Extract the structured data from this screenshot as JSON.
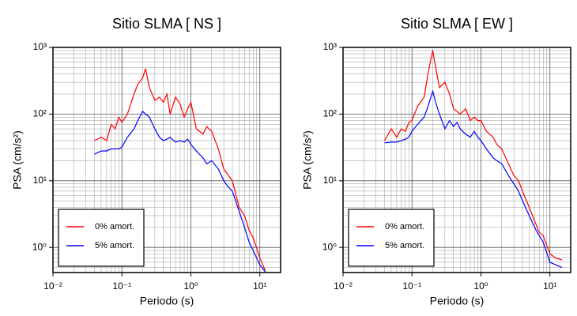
{
  "chart_data": [
    {
      "type": "line",
      "title": "Sitio SLMA [ NS ]",
      "xlabel": "Periodo (s)",
      "ylabel": "PSA (cm/s²)",
      "xscale": "log",
      "yscale": "log",
      "grid": true,
      "legend": "lower left",
      "xlim": [
        0.01,
        20
      ],
      "ylim": [
        0.42,
        1000
      ],
      "xticks": [
        {
          "value": 0.01,
          "label": "10⁻²"
        },
        {
          "value": 0.1,
          "label": "10⁻¹"
        },
        {
          "value": 1,
          "label": "10⁰"
        },
        {
          "value": 10,
          "label": "10¹"
        }
      ],
      "yticks": [
        {
          "value": 1,
          "label": "10⁰"
        },
        {
          "value": 10,
          "label": "10¹"
        },
        {
          "value": 100,
          "label": "10²"
        },
        {
          "value": 1000,
          "label": "10³"
        }
      ],
      "x": [
        0.04,
        0.05,
        0.06,
        0.07,
        0.08,
        0.09,
        0.1,
        0.12,
        0.15,
        0.17,
        0.2,
        0.22,
        0.25,
        0.3,
        0.35,
        0.4,
        0.45,
        0.5,
        0.6,
        0.7,
        0.8,
        0.9,
        1.0,
        1.2,
        1.5,
        1.7,
        2,
        2.5,
        3,
        3.5,
        4,
        5,
        6,
        7,
        8,
        10,
        12
      ],
      "series": [
        {
          "name": "0% amort.",
          "color": "#ff0000",
          "values": [
            40,
            45,
            40,
            70,
            60,
            90,
            75,
            100,
            200,
            280,
            350,
            480,
            250,
            160,
            180,
            150,
            200,
            100,
            180,
            140,
            90,
            120,
            150,
            60,
            50,
            65,
            55,
            30,
            15,
            12,
            10,
            4,
            3,
            1.8,
            1.4,
            0.7,
            0.45
          ]
        },
        {
          "name": "5% amort.",
          "color": "#0000ff",
          "values": [
            25,
            28,
            28,
            30,
            30,
            30,
            32,
            45,
            60,
            80,
            110,
            100,
            90,
            60,
            45,
            40,
            42,
            45,
            38,
            40,
            38,
            42,
            35,
            28,
            22,
            18,
            20,
            15,
            10,
            8,
            7,
            3.5,
            2,
            1.2,
            0.9,
            0.55,
            0.43
          ]
        }
      ]
    },
    {
      "type": "line",
      "title": "Sitio SLMA [ EW ]",
      "xlabel": "Periodo (s)",
      "ylabel": "PSA (cm/s²)",
      "xscale": "log",
      "yscale": "log",
      "grid": true,
      "legend": "lower left",
      "xlim": [
        0.01,
        20
      ],
      "ylim": [
        0.42,
        1000
      ],
      "xticks": [
        {
          "value": 0.01,
          "label": "10⁻²"
        },
        {
          "value": 0.1,
          "label": "10⁻¹"
        },
        {
          "value": 1,
          "label": "10⁰"
        },
        {
          "value": 10,
          "label": "10¹"
        }
      ],
      "yticks": [
        {
          "value": 1,
          "label": "10⁰"
        },
        {
          "value": 10,
          "label": "10¹"
        },
        {
          "value": 100,
          "label": "10²"
        },
        {
          "value": 1000,
          "label": "10³"
        }
      ],
      "x": [
        0.04,
        0.05,
        0.06,
        0.07,
        0.08,
        0.09,
        0.1,
        0.12,
        0.15,
        0.17,
        0.2,
        0.22,
        0.25,
        0.3,
        0.35,
        0.4,
        0.45,
        0.5,
        0.6,
        0.7,
        0.8,
        0.9,
        1.0,
        1.2,
        1.5,
        1.7,
        2,
        2.5,
        3,
        3.5,
        4,
        5,
        6,
        7,
        8,
        10,
        12,
        15
      ],
      "series": [
        {
          "name": "0% amort.",
          "color": "#ff0000",
          "values": [
            40,
            60,
            45,
            60,
            55,
            75,
            80,
            130,
            180,
            400,
            900,
            500,
            250,
            300,
            200,
            120,
            110,
            100,
            120,
            80,
            90,
            80,
            80,
            55,
            45,
            35,
            30,
            18,
            12,
            10,
            7,
            4,
            2.5,
            1.7,
            1.5,
            0.8,
            0.7,
            0.65
          ]
        },
        {
          "name": "5% amort.",
          "color": "#0000ff",
          "values": [
            37,
            38,
            38,
            40,
            42,
            45,
            55,
            70,
            90,
            130,
            220,
            150,
            100,
            60,
            80,
            65,
            75,
            60,
            50,
            45,
            55,
            45,
            40,
            30,
            22,
            20,
            18,
            12,
            9,
            7,
            5,
            3,
            2,
            1.5,
            1.2,
            0.6,
            0.55,
            0.5
          ]
        }
      ]
    }
  ]
}
